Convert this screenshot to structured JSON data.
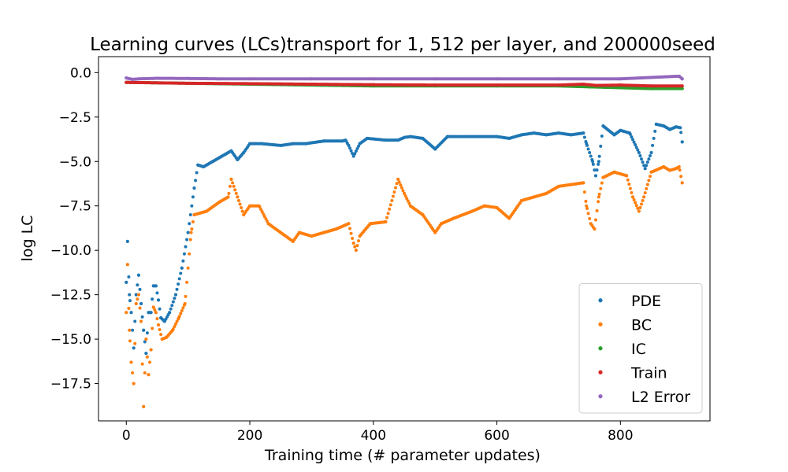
{
  "chart_data": {
    "type": "scatter",
    "title": "Learning curves (LCs)transport for 1, 512 per layer, and 200000seed",
    "xlabel": "Training time (# parameter updates)",
    "ylabel": "log LC",
    "xlim": [
      -45,
      945
    ],
    "ylim": [
      -19.6,
      0.9
    ],
    "xticks": [
      0,
      200,
      400,
      600,
      800
    ],
    "xtick_labels": [
      "0",
      "200",
      "400",
      "600",
      "800"
    ],
    "yticks": [
      0.0,
      -2.5,
      -5.0,
      -7.5,
      -10.0,
      -12.5,
      -15.0,
      -17.5
    ],
    "ytick_labels": [
      "0.0",
      "−2.5",
      "−5.0",
      "−7.5",
      "−10.0",
      "−12.5",
      "−15.0",
      "−17.5"
    ],
    "grid": false,
    "legend_position": "lower right",
    "series": [
      {
        "name": "PDE",
        "color": "#1f77b4",
        "keypoints": [
          [
            0,
            -11.8
          ],
          [
            2,
            -9.5
          ],
          [
            5,
            -12.5
          ],
          [
            8,
            -13.5
          ],
          [
            12,
            -15.5
          ],
          [
            16,
            -12.5
          ],
          [
            20,
            -11.4
          ],
          [
            24,
            -13.0
          ],
          [
            28,
            -14.5
          ],
          [
            32,
            -15.8
          ],
          [
            36,
            -13.5
          ],
          [
            40,
            -13.5
          ],
          [
            44,
            -12.0
          ],
          [
            48,
            -12.0
          ],
          [
            52,
            -12.8
          ],
          [
            56,
            -13.8
          ],
          [
            62,
            -14.0
          ],
          [
            70,
            -13.5
          ],
          [
            80,
            -12.5
          ],
          [
            90,
            -11.0
          ],
          [
            100,
            -9.0
          ],
          [
            110,
            -6.5
          ],
          [
            116,
            -5.2
          ],
          [
            125,
            -5.3
          ],
          [
            140,
            -5.0
          ],
          [
            160,
            -4.6
          ],
          [
            170,
            -4.4
          ],
          [
            180,
            -4.9
          ],
          [
            190,
            -4.5
          ],
          [
            200,
            -4.0
          ],
          [
            220,
            -4.0
          ],
          [
            250,
            -4.1
          ],
          [
            270,
            -4.0
          ],
          [
            290,
            -4.0
          ],
          [
            320,
            -3.85
          ],
          [
            350,
            -3.85
          ],
          [
            355,
            -3.8
          ],
          [
            360,
            -4.1
          ],
          [
            368,
            -4.7
          ],
          [
            378,
            -4.0
          ],
          [
            390,
            -3.7
          ],
          [
            420,
            -3.8
          ],
          [
            440,
            -3.8
          ],
          [
            450,
            -3.65
          ],
          [
            460,
            -3.6
          ],
          [
            480,
            -3.7
          ],
          [
            500,
            -4.3
          ],
          [
            520,
            -3.6
          ],
          [
            560,
            -3.6
          ],
          [
            580,
            -3.6
          ],
          [
            600,
            -3.6
          ],
          [
            620,
            -3.7
          ],
          [
            640,
            -3.5
          ],
          [
            660,
            -3.4
          ],
          [
            680,
            -3.5
          ],
          [
            700,
            -3.4
          ],
          [
            720,
            -3.5
          ],
          [
            740,
            -3.4
          ],
          [
            745,
            -4.0
          ],
          [
            755,
            -5.0
          ],
          [
            760,
            -5.8
          ],
          [
            765,
            -5.0
          ],
          [
            772,
            -3.0
          ],
          [
            790,
            -3.5
          ],
          [
            800,
            -3.25
          ],
          [
            815,
            -3.4
          ],
          [
            830,
            -4.5
          ],
          [
            840,
            -5.4
          ],
          [
            850,
            -4.5
          ],
          [
            858,
            -2.9
          ],
          [
            870,
            -3.0
          ],
          [
            880,
            -3.2
          ],
          [
            890,
            -3.05
          ],
          [
            897,
            -3.1
          ],
          [
            900,
            -3.9
          ]
        ]
      },
      {
        "name": "BC",
        "color": "#ff7f0e",
        "keypoints": [
          [
            0,
            -13.5
          ],
          [
            2,
            -10.8
          ],
          [
            5,
            -14.5
          ],
          [
            8,
            -16.3
          ],
          [
            12,
            -17.5
          ],
          [
            16,
            -13.0
          ],
          [
            20,
            -12.5
          ],
          [
            24,
            -14.0
          ],
          [
            28,
            -18.8
          ],
          [
            32,
            -15.0
          ],
          [
            36,
            -17.0
          ],
          [
            40,
            -15.6
          ],
          [
            44,
            -13.2
          ],
          [
            48,
            -13.5
          ],
          [
            52,
            -14.2
          ],
          [
            58,
            -15.0
          ],
          [
            65,
            -14.9
          ],
          [
            75,
            -14.5
          ],
          [
            85,
            -13.8
          ],
          [
            95,
            -13.0
          ],
          [
            105,
            -9.0
          ],
          [
            110,
            -8.0
          ],
          [
            130,
            -7.8
          ],
          [
            150,
            -7.3
          ],
          [
            165,
            -7.0
          ],
          [
            170,
            -6.0
          ],
          [
            180,
            -7.0
          ],
          [
            190,
            -8.0
          ],
          [
            200,
            -7.5
          ],
          [
            215,
            -7.5
          ],
          [
            230,
            -8.5
          ],
          [
            250,
            -9.0
          ],
          [
            270,
            -9.5
          ],
          [
            280,
            -9.0
          ],
          [
            300,
            -9.2
          ],
          [
            320,
            -9.0
          ],
          [
            340,
            -8.8
          ],
          [
            360,
            -8.5
          ],
          [
            368,
            -9.6
          ],
          [
            372,
            -10.0
          ],
          [
            378,
            -9.2
          ],
          [
            395,
            -8.5
          ],
          [
            420,
            -8.4
          ],
          [
            440,
            -6.0
          ],
          [
            450,
            -6.8
          ],
          [
            460,
            -7.5
          ],
          [
            480,
            -8.0
          ],
          [
            500,
            -9.0
          ],
          [
            510,
            -8.5
          ],
          [
            530,
            -8.2
          ],
          [
            560,
            -7.8
          ],
          [
            580,
            -7.5
          ],
          [
            600,
            -7.6
          ],
          [
            620,
            -8.2
          ],
          [
            640,
            -7.2
          ],
          [
            660,
            -7.0
          ],
          [
            680,
            -6.8
          ],
          [
            700,
            -6.4
          ],
          [
            720,
            -6.3
          ],
          [
            740,
            -6.2
          ],
          [
            745,
            -7.5
          ],
          [
            752,
            -8.5
          ],
          [
            758,
            -8.8
          ],
          [
            765,
            -7.0
          ],
          [
            772,
            -5.9
          ],
          [
            790,
            -5.6
          ],
          [
            810,
            -5.8
          ],
          [
            820,
            -7.0
          ],
          [
            830,
            -7.8
          ],
          [
            838,
            -7.0
          ],
          [
            850,
            -5.6
          ],
          [
            870,
            -5.3
          ],
          [
            880,
            -5.5
          ],
          [
            890,
            -5.4
          ],
          [
            895,
            -5.3
          ],
          [
            900,
            -6.2
          ]
        ]
      },
      {
        "name": "IC",
        "color": "#2ca02c",
        "keypoints": [
          [
            0,
            -0.55
          ],
          [
            100,
            -0.6
          ],
          [
            200,
            -0.65
          ],
          [
            300,
            -0.7
          ],
          [
            400,
            -0.75
          ],
          [
            500,
            -0.75
          ],
          [
            600,
            -0.75
          ],
          [
            700,
            -0.75
          ],
          [
            750,
            -0.8
          ],
          [
            800,
            -0.85
          ],
          [
            850,
            -0.9
          ],
          [
            900,
            -0.9
          ]
        ]
      },
      {
        "name": "Train",
        "color": "#d62728",
        "keypoints": [
          [
            0,
            -0.55
          ],
          [
            100,
            -0.6
          ],
          [
            200,
            -0.62
          ],
          [
            300,
            -0.65
          ],
          [
            400,
            -0.68
          ],
          [
            500,
            -0.7
          ],
          [
            600,
            -0.7
          ],
          [
            700,
            -0.7
          ],
          [
            740,
            -0.65
          ],
          [
            760,
            -0.72
          ],
          [
            800,
            -0.7
          ],
          [
            850,
            -0.75
          ],
          [
            900,
            -0.75
          ]
        ]
      },
      {
        "name": "L2 Error",
        "color": "#9467bd",
        "keypoints": [
          [
            0,
            -0.3
          ],
          [
            10,
            -0.38
          ],
          [
            20,
            -0.35
          ],
          [
            50,
            -0.32
          ],
          [
            100,
            -0.33
          ],
          [
            150,
            -0.35
          ],
          [
            200,
            -0.35
          ],
          [
            300,
            -0.35
          ],
          [
            400,
            -0.35
          ],
          [
            500,
            -0.35
          ],
          [
            600,
            -0.35
          ],
          [
            700,
            -0.35
          ],
          [
            800,
            -0.35
          ],
          [
            895,
            -0.2
          ],
          [
            900,
            -0.35
          ]
        ]
      }
    ]
  }
}
